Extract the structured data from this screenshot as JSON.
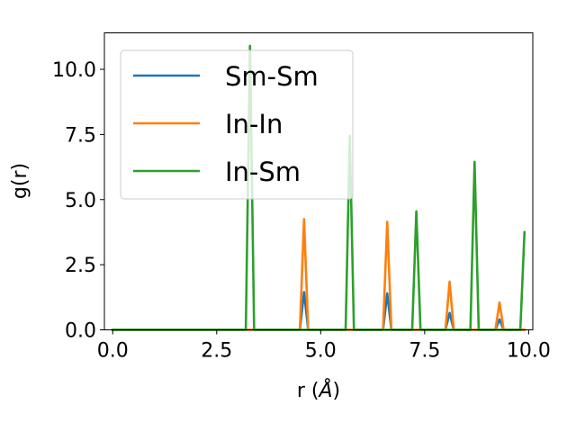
{
  "chart_data": {
    "type": "line",
    "xlabel_prefix": "r (",
    "xlabel_unit": "Å",
    "xlabel_suffix": ")",
    "ylabel": "g(r)",
    "xlim": [
      -0.2,
      10.1
    ],
    "ylim": [
      0,
      11.4
    ],
    "xticks": [
      0.0,
      2.5,
      5.0,
      7.5,
      10.0
    ],
    "xtick_labels": [
      "0.0",
      "2.5",
      "5.0",
      "7.5",
      "10.0"
    ],
    "yticks": [
      0.0,
      2.5,
      5.0,
      7.5,
      10.0
    ],
    "ytick_labels": [
      "0.0",
      "2.5",
      "5.0",
      "7.5",
      "10.0"
    ],
    "grid": false,
    "legend_position": "upper-left",
    "series": [
      {
        "name": "Sm-Sm",
        "color": "#1f77b4",
        "x": [
          0.0,
          4.5,
          4.6,
          4.7,
          6.5,
          6.6,
          6.7,
          8.0,
          8.1,
          8.2,
          9.2,
          9.3,
          9.4,
          9.9
        ],
        "y": [
          0,
          0,
          1.45,
          0,
          0,
          1.4,
          0,
          0,
          0.65,
          0,
          0,
          0.4,
          0,
          0
        ]
      },
      {
        "name": "In-In",
        "color": "#ff7f0e",
        "x": [
          0.0,
          4.5,
          4.6,
          4.7,
          6.5,
          6.6,
          6.7,
          8.0,
          8.1,
          8.2,
          9.2,
          9.3,
          9.4,
          9.9
        ],
        "y": [
          0,
          0,
          4.25,
          0,
          0,
          4.15,
          0,
          0,
          1.85,
          0,
          0,
          1.05,
          0,
          0
        ]
      },
      {
        "name": "In-Sm",
        "color": "#2ca02c",
        "x": [
          0.0,
          3.2,
          3.3,
          3.4,
          5.6,
          5.7,
          5.8,
          7.2,
          7.3,
          7.4,
          8.6,
          8.7,
          8.8,
          9.8,
          9.9
        ],
        "y": [
          0,
          0,
          10.9,
          0,
          0,
          7.45,
          0,
          0,
          4.55,
          0,
          0,
          6.45,
          0,
          0,
          3.75
        ]
      }
    ]
  }
}
